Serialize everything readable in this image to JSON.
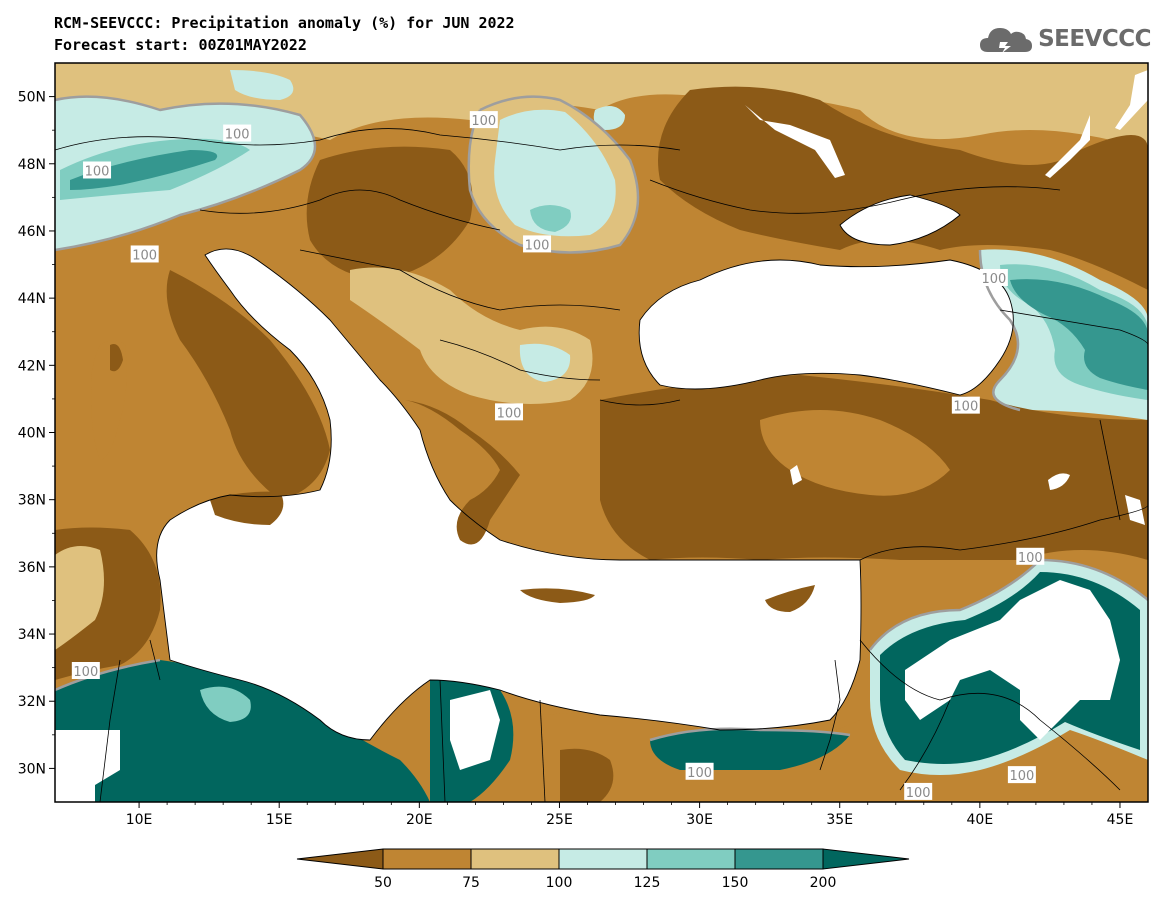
{
  "header": {
    "title_line1": "RCM-SEEVCCC: Precipitation anomaly (%) for JUN 2022",
    "title_line2": "Forecast start: 00Z01MAY2022",
    "logo_text": "SEEVCCC"
  },
  "colors": {
    "below_50": "#8c5a17",
    "range_50_75": "#bf8533",
    "range_75_100": "#dfc17e",
    "range_100_125": "#c6ebe5",
    "range_125_150": "#80cdc1",
    "range_150_200": "#35978f",
    "above_200": "#01665e",
    "land_white": "#ffffff",
    "contour_100": "#9e9e9e"
  },
  "chart_data": {
    "type": "heatmap",
    "title": "RCM-SEEVCCC: Precipitation anomaly (%) for JUN 2022",
    "subtitle": "Forecast start: 00Z01MAY2022",
    "x_ticks": [
      "10E",
      "15E",
      "20E",
      "25E",
      "30E",
      "35E",
      "40E",
      "45E"
    ],
    "y_ticks": [
      "30N",
      "32N",
      "34N",
      "36N",
      "38N",
      "40N",
      "42N",
      "44N",
      "46N",
      "48N",
      "50N"
    ],
    "x_tick_values": [
      10,
      15,
      20,
      25,
      30,
      35,
      40,
      45
    ],
    "y_tick_values": [
      30,
      32,
      34,
      36,
      38,
      40,
      42,
      44,
      46,
      48,
      50
    ],
    "xlim": [
      7,
      46
    ],
    "ylim": [
      29,
      51
    ],
    "colorbar": {
      "labels": [
        "50",
        "75",
        "100",
        "125",
        "150",
        "200"
      ],
      "values": [
        50,
        75,
        100,
        125,
        150,
        200
      ],
      "extend": "both"
    },
    "contour_label": "100"
  }
}
